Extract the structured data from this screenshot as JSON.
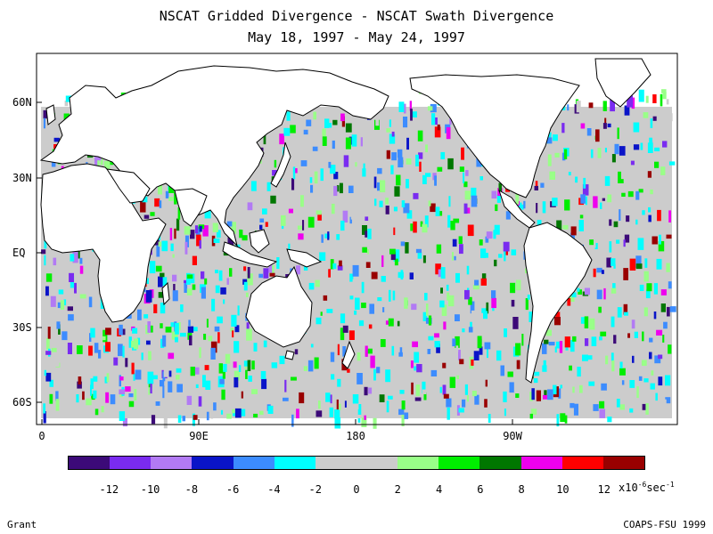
{
  "title_line1": "NSCAT Gridded Divergence - NSCAT Swath Divergence",
  "title_line2": "May 18, 1997 - May 24, 1997",
  "lat_labels": [
    "60N",
    "30N",
    "EQ",
    "30S",
    "60S"
  ],
  "lon_labels": [
    "0",
    "90E",
    "180",
    "90W"
  ],
  "colorbar": {
    "colors": [
      "#3c0a78",
      "#7a2bf0",
      "#b27af4",
      "#0a14c8",
      "#3c8cff",
      "#00ffff",
      "#cccccc",
      "#cccccc",
      "#99ff88",
      "#00ee00",
      "#007700",
      "#ee00ee",
      "#ff0000",
      "#990000"
    ],
    "tick_labels": [
      "-12",
      "-10",
      "-8",
      "-6",
      "-4",
      "-2",
      "0",
      "2",
      "4",
      "6",
      "8",
      "10",
      "12"
    ],
    "units_base": "x10",
    "units_exp": "-6",
    "units_tail": "sec",
    "units_tail_exp": "-1"
  },
  "credit_left": "Grant",
  "credit_right": "COAPS-FSU 1999"
}
